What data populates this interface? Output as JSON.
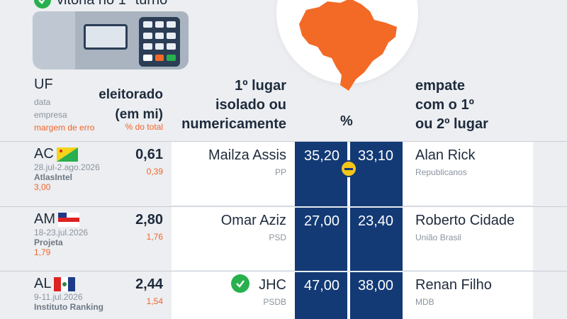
{
  "header": {
    "top_text": "vitória no 1º turno",
    "uf": "UF",
    "data": "data",
    "empresa": "empresa",
    "margem": "margem de erro",
    "eleitorado_1": "eleitorado",
    "eleitorado_2": "(em mi)",
    "pct_total": "% do total",
    "primeiro_1": "1º lugar",
    "primeiro_2": "isolado ou",
    "primeiro_3": "numericamente",
    "percent": "%",
    "empate_1": "empate",
    "empate_2": "com o 1º",
    "empate_3": "ou 2º lugar"
  },
  "rows": [
    {
      "uf": "AC",
      "date": "28.jul-2.ago.2026",
      "firm": "AtlasIntel",
      "margin": "3,00",
      "electorate": "0,61",
      "pct_total": "0,39",
      "first_name": "Mailza Assis",
      "first_party": "PP",
      "first_pct": "35,20",
      "second_pct": "33,10",
      "second_name": "Alan Rick",
      "second_party": "Republicanos",
      "tie": true,
      "win": false
    },
    {
      "uf": "AM",
      "date": "18-23.jul.2026",
      "firm": "Projeta",
      "margin": "1,79",
      "electorate": "2,80",
      "pct_total": "1,76",
      "first_name": "Omar Aziz",
      "first_party": "PSD",
      "first_pct": "27,00",
      "second_pct": "23,40",
      "second_name": "Roberto Cidade",
      "second_party": "União Brasil",
      "tie": false,
      "win": false
    },
    {
      "uf": "AL",
      "date": "9-11.jul.2026",
      "firm": "Instituto Ranking",
      "margin": "",
      "electorate": "2,44",
      "pct_total": "1,54",
      "first_name": "JHC",
      "first_party": "PSDB",
      "first_pct": "47,00",
      "second_pct": "38,00",
      "second_name": "Renan Filho",
      "second_party": "MDB",
      "tie": false,
      "win": true
    }
  ],
  "colors": {
    "accent_orange": "#f2642a",
    "bar_blue": "#133a74",
    "win_green": "#27b04d",
    "tie_yellow": "#f5c518"
  },
  "icons": [
    "check-circle-icon",
    "voting-machine-icon",
    "brazil-map-icon",
    "tie-icon",
    "acre-flag-icon",
    "amazonas-flag-icon",
    "alagoas-flag-icon"
  ]
}
